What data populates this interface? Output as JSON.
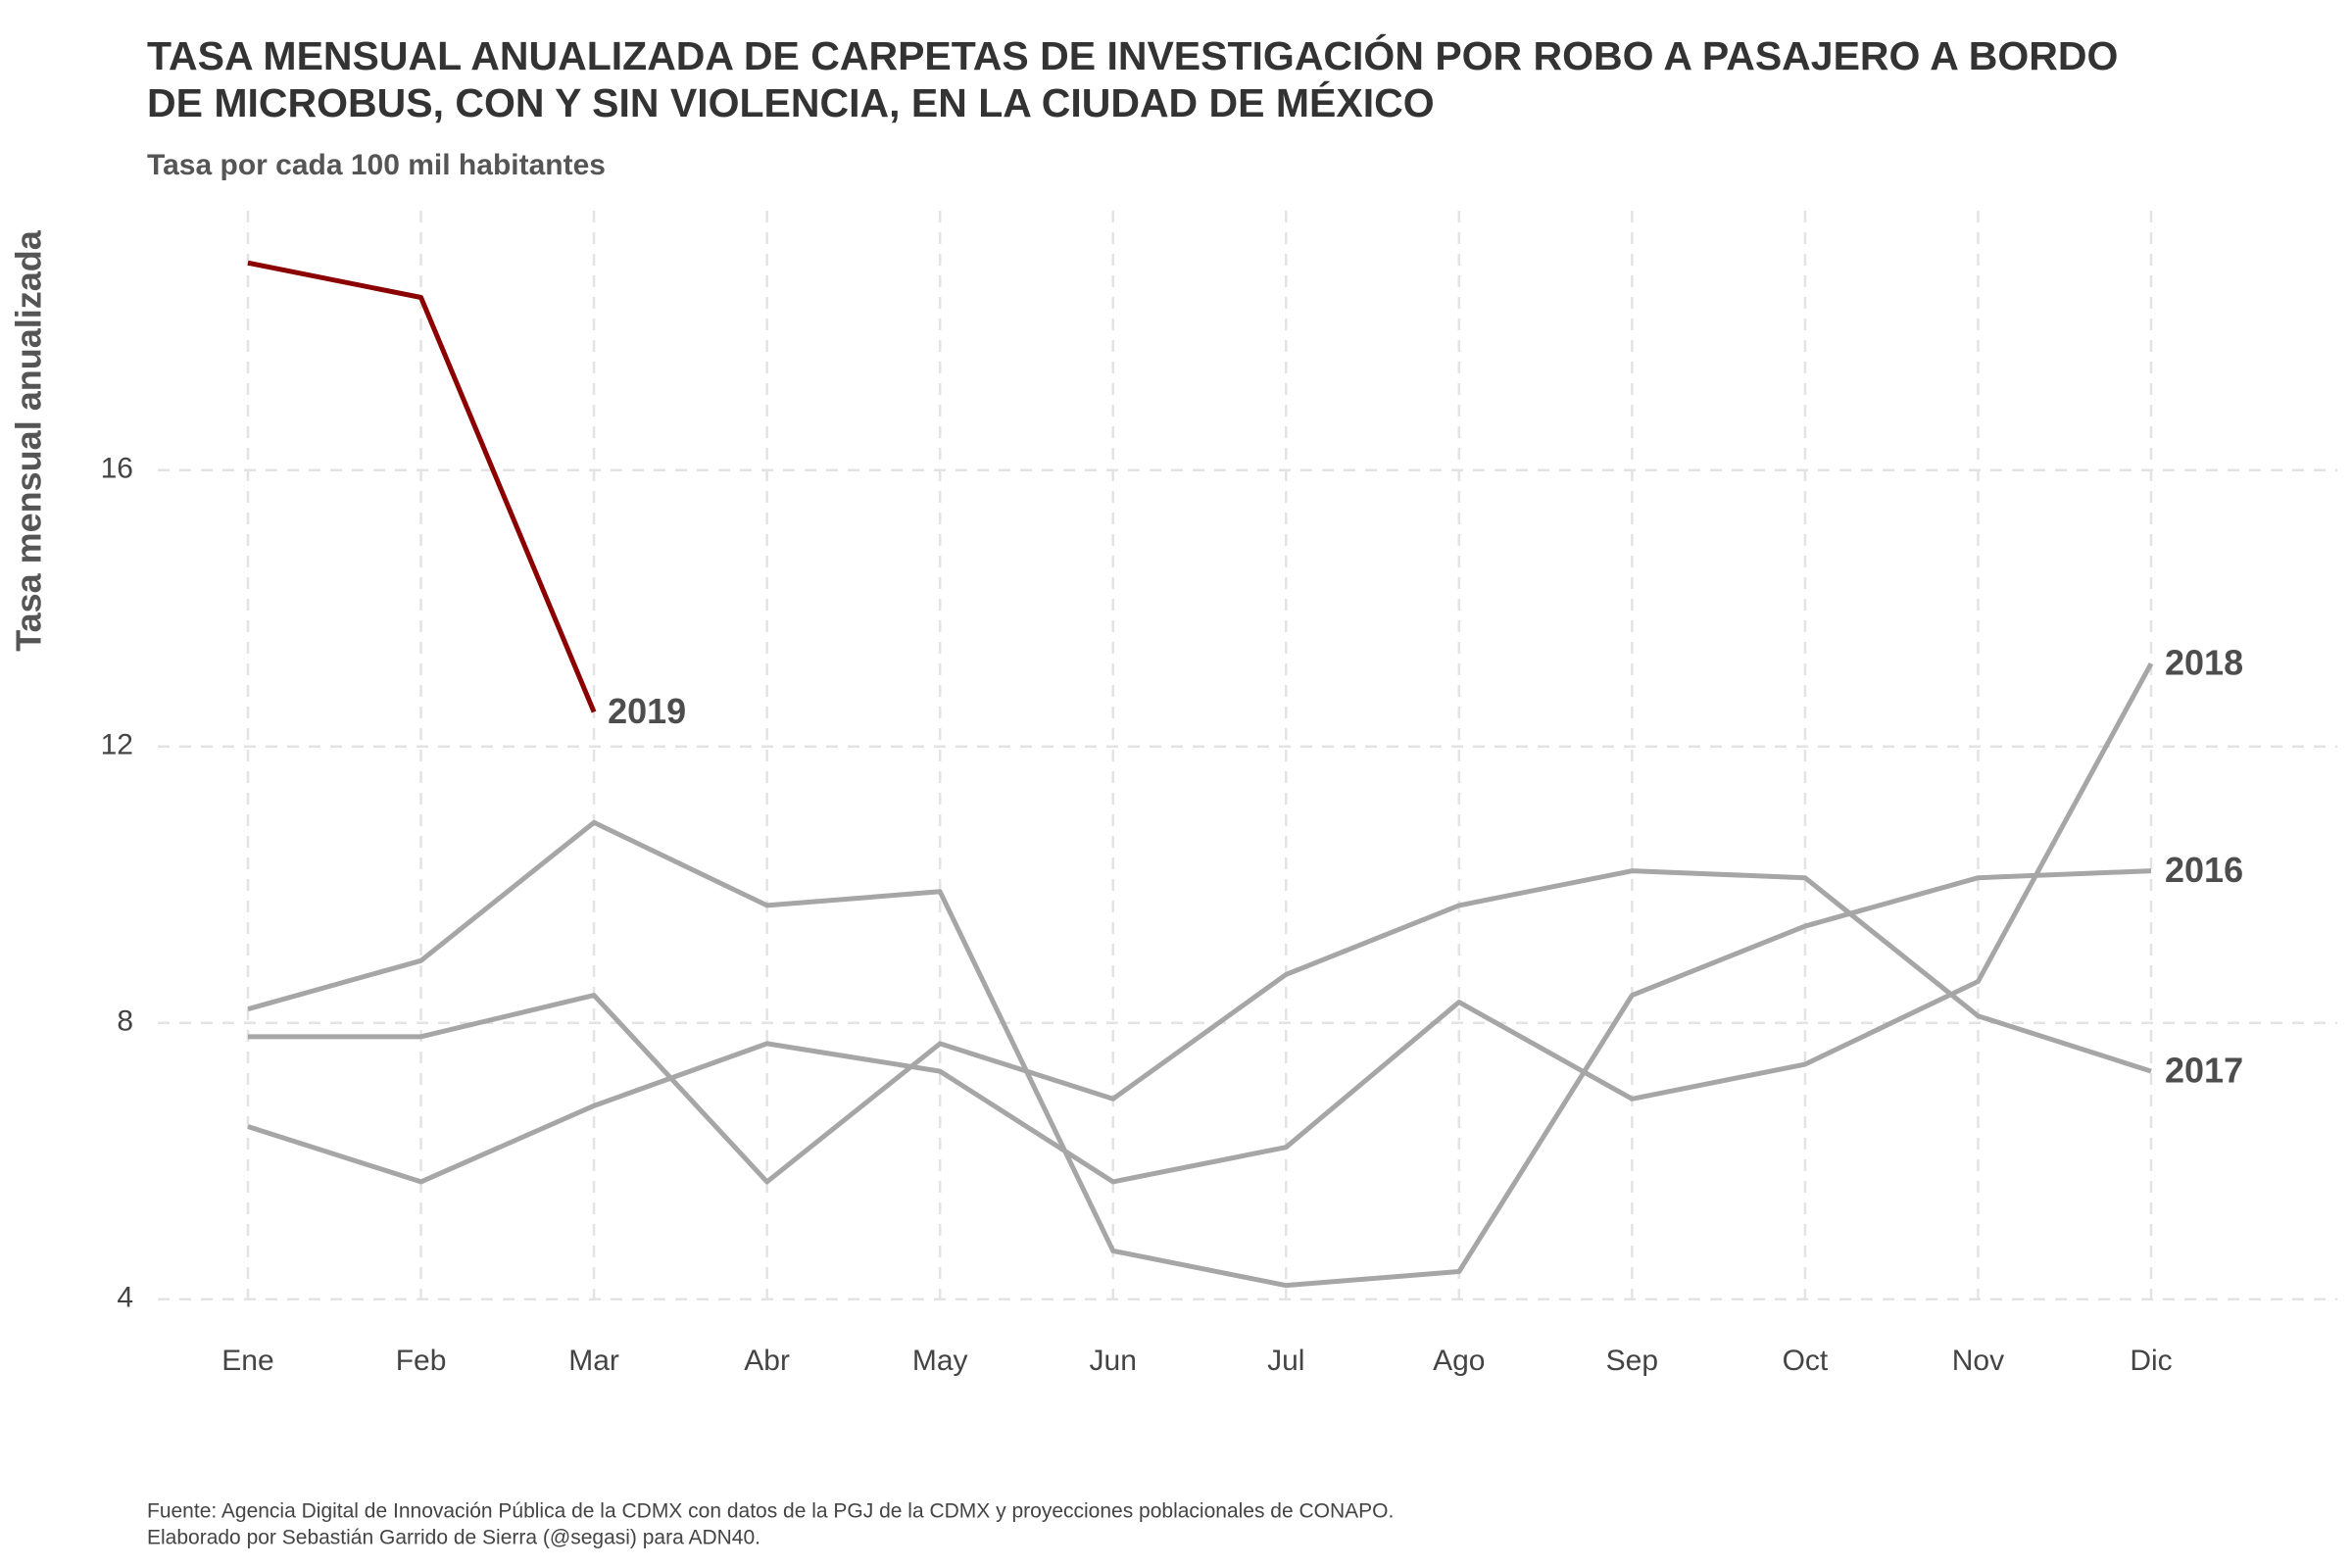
{
  "chart_data": {
    "type": "line",
    "title": "TASA MENSUAL ANUALIZADA DE CARPETAS DE INVESTIGACIÓN POR ROBO A PASAJERO A BORDO",
    "title_line2": "DE MICROBUS, CON Y SIN VIOLENCIA, EN LA CIUDAD DE MÉXICO",
    "subtitle": "Tasa por cada 100 mil habitantes",
    "y_label": "Tasa mensual anualizada",
    "caption": "Fuente: Agencia Digital de Innovación Pública de la CDMX con datos de la PGJ de la CDMX y proyecciones poblacionales de CONAPO.",
    "caption_line2": "Elaborado por Sebastián Garrido de Sierra (@segasi) para ADN40.",
    "categories": [
      "Ene",
      "Feb",
      "Mar",
      "Abr",
      "May",
      "Jun",
      "Jul",
      "Ago",
      "Sep",
      "Oct",
      "Nov",
      "Dic"
    ],
    "series": [
      {
        "name": "2016",
        "color": "#a6a6a6",
        "values": [
          8.2,
          8.9,
          10.9,
          9.7,
          9.9,
          4.7,
          4.2,
          4.4,
          8.4,
          9.4,
          10.1,
          10.2
        ]
      },
      {
        "name": "2017",
        "color": "#a6a6a6",
        "values": [
          7.8,
          7.8,
          8.4,
          5.7,
          7.7,
          6.9,
          8.7,
          9.7,
          10.2,
          10.1,
          8.1,
          7.3
        ]
      },
      {
        "name": "2018",
        "color": "#a6a6a6",
        "values": [
          6.5,
          5.7,
          6.8,
          7.7,
          7.3,
          5.7,
          6.2,
          8.3,
          6.9,
          7.4,
          8.6,
          13.2
        ]
      },
      {
        "name": "2019",
        "color": "#8b0000",
        "values": [
          19.0,
          18.5,
          12.5,
          null,
          null,
          null,
          null,
          null,
          null,
          null,
          null,
          null
        ]
      }
    ],
    "ylim": [
      3.5,
      19.5
    ],
    "yticks": [
      4,
      8,
      12,
      16
    ],
    "grid": true
  }
}
